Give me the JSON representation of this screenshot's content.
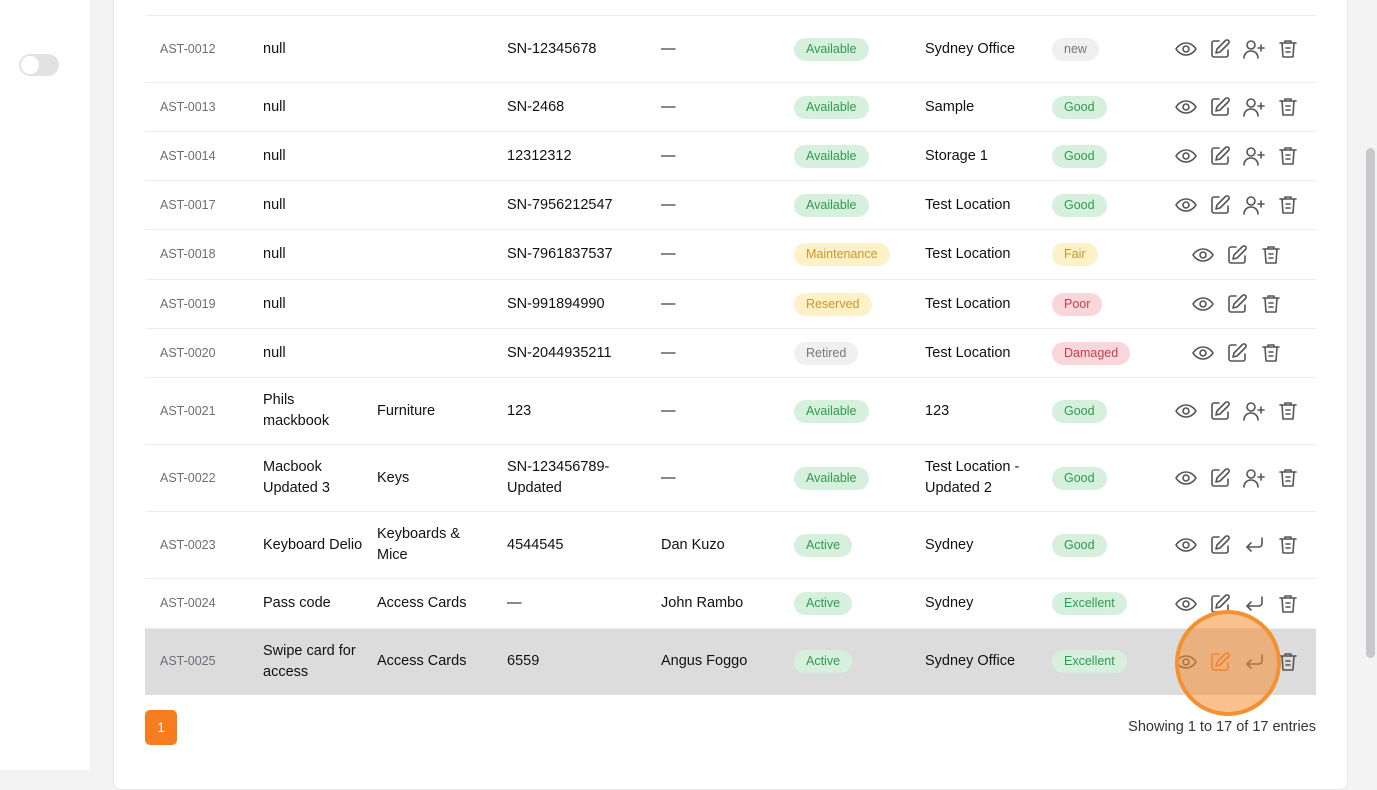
{
  "colors": {
    "accent": "#f57c1f"
  },
  "badge_styles": {
    "Available": [
      "#d7f0dd",
      "#2f9a4e"
    ],
    "Active": [
      "#d7f0dd",
      "#2f9a4e"
    ],
    "Good": [
      "#d7f0dd",
      "#2f9a4e"
    ],
    "Excellent": [
      "#d7f0dd",
      "#2f9a4e"
    ],
    "Maintenance": [
      "#fdf1c9",
      "#c9982a"
    ],
    "Reserved": [
      "#fdf1c9",
      "#c9982a"
    ],
    "Fair": [
      "#fdf1c9",
      "#c9982a"
    ],
    "Poor": [
      "#f8d6da",
      "#c8404f"
    ],
    "Damaged": [
      "#f8d6da",
      "#c8404f"
    ],
    "Retired": [
      "#f0f0f1",
      "#777"
    ],
    "new": [
      "#f0f0f1",
      "#777"
    ]
  },
  "rows": [
    {
      "id": "AST-0012",
      "name": "null",
      "category": "",
      "serial": "SN-12345678",
      "assigned": "—",
      "status": "Available",
      "location": "Sydney Office",
      "condition": "new",
      "actions": [
        "eye",
        "edit",
        "user-plus",
        "trash"
      ],
      "h": 67
    },
    {
      "id": "AST-0013",
      "name": "null",
      "category": "",
      "serial": "SN-2468",
      "assigned": "—",
      "status": "Available",
      "location": "Sample",
      "condition": "Good",
      "actions": [
        "eye",
        "edit",
        "user-plus",
        "trash"
      ],
      "h": 49
    },
    {
      "id": "AST-0014",
      "name": "null",
      "category": "",
      "serial": "12312312",
      "assigned": "—",
      "status": "Available",
      "location": "Storage 1",
      "condition": "Good",
      "actions": [
        "eye",
        "edit",
        "user-plus",
        "trash"
      ],
      "h": 49
    },
    {
      "id": "AST-0017",
      "name": "null",
      "category": "",
      "serial": "SN-7956212547",
      "assigned": "—",
      "status": "Available",
      "location": "Test Location",
      "condition": "Good",
      "actions": [
        "eye",
        "edit",
        "user-plus",
        "trash"
      ],
      "h": 49
    },
    {
      "id": "AST-0018",
      "name": "null",
      "category": "",
      "serial": "SN-7961837537",
      "assigned": "—",
      "status": "Maintenance",
      "location": "Test Location",
      "condition": "Fair",
      "actions": [
        "eye",
        "edit",
        "trash"
      ],
      "h": 50
    },
    {
      "id": "AST-0019",
      "name": "null",
      "category": "",
      "serial": "SN-991894990",
      "assigned": "—",
      "status": "Reserved",
      "location": "Test Location",
      "condition": "Poor",
      "actions": [
        "eye",
        "edit",
        "trash"
      ],
      "h": 49
    },
    {
      "id": "AST-0020",
      "name": "null",
      "category": "",
      "serial": "SN-2044935211",
      "assigned": "—",
      "status": "Retired",
      "location": "Test Location",
      "condition": "Damaged",
      "actions": [
        "eye",
        "edit",
        "trash"
      ],
      "h": 49
    },
    {
      "id": "AST-0021",
      "name": "Phils mackbook",
      "category": "Furniture",
      "serial": "123",
      "assigned": "—",
      "status": "Available",
      "location": "123",
      "condition": "Good",
      "actions": [
        "eye",
        "edit",
        "user-plus",
        "trash"
      ],
      "h": 67
    },
    {
      "id": "AST-0022",
      "name": "Macbook Updated 3",
      "category": "Keys",
      "serial": "SN-123456789-Updated",
      "assigned": "—",
      "status": "Available",
      "location": "Test Location - Updated 2",
      "condition": "Good",
      "actions": [
        "eye",
        "edit",
        "user-plus",
        "trash"
      ],
      "h": 67
    },
    {
      "id": "AST-0023",
      "name": "Keyboard Delio",
      "category": "Keyboards & Mice",
      "serial": "4544545",
      "assigned": "Dan Kuzo",
      "status": "Active",
      "location": "Sydney",
      "condition": "Good",
      "actions": [
        "eye",
        "edit",
        "return",
        "trash"
      ],
      "h": 67
    },
    {
      "id": "AST-0024",
      "name": "Pass code",
      "category": "Access Cards",
      "serial": "—",
      "assigned": "John Rambo",
      "status": "Active",
      "location": "Sydney",
      "condition": "Excellent",
      "actions": [
        "eye",
        "edit",
        "return",
        "trash"
      ],
      "h": 50
    },
    {
      "id": "AST-0025",
      "name": "Swipe card for access",
      "category": "Access Cards",
      "serial": "6559",
      "assigned": "Angus Foggo",
      "status": "Active",
      "location": "Sydney Office",
      "condition": "Excellent",
      "actions": [
        "eye",
        "edit",
        "return",
        "trash"
      ],
      "h": 66,
      "highlighted": true
    }
  ],
  "pagination": {
    "current": "1",
    "info": "Showing 1 to 17 of 17 entries"
  }
}
